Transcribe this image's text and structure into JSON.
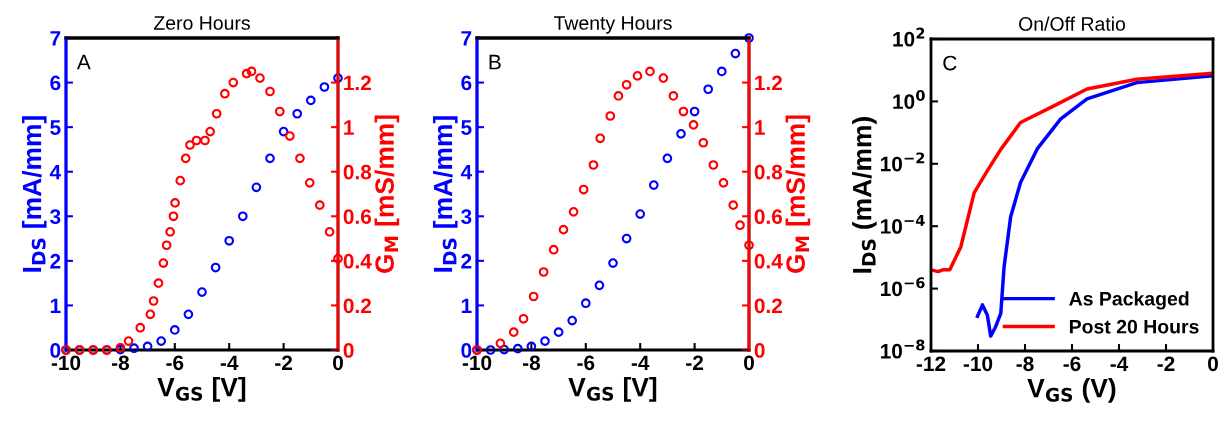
{
  "chart_data": [
    {
      "type": "scatter",
      "title": "Zero Hours",
      "xlabel": "V$_{GS}$ [V]",
      "ylabel": "I$_{DS}$ [mA/mm]",
      "y2label": "G$_{M}$ [mS/mm]",
      "annotations": [
        "A"
      ],
      "marker": "circle",
      "grid": false,
      "legend": false,
      "xlim": [
        -10,
        0
      ],
      "xticks": [
        -10,
        -8,
        -6,
        -4,
        -2,
        0
      ],
      "ylim": [
        0,
        7
      ],
      "yticks": [
        0,
        1,
        2,
        3,
        4,
        5,
        6,
        7
      ],
      "y2lim": [
        0,
        1.4
      ],
      "y2ticks": [
        0,
        0.2,
        0.4,
        0.6,
        0.8,
        1,
        1.2
      ],
      "series": [
        {
          "color": "#0000ff",
          "x": [
            -10,
            -9.5,
            -9,
            -8.5,
            -8,
            -7.5,
            -7,
            -6.5,
            -6,
            -5.5,
            -5,
            -4.5,
            -4,
            -3.5,
            -3,
            -2.5,
            -2,
            -1.5,
            -1,
            -0.5,
            0
          ],
          "values": [
            0,
            0,
            0,
            0,
            0.01,
            0.04,
            0.08,
            0.2,
            0.45,
            0.8,
            1.3,
            1.85,
            2.45,
            3.0,
            3.65,
            4.3,
            4.9,
            5.3,
            5.6,
            5.9,
            6.1
          ]
        },
        {
          "color": "#ff0000",
          "axis": "y2",
          "x": [
            -10,
            -9.5,
            -9,
            -8.5,
            -8,
            -7.7,
            -7.27,
            -6.9,
            -6.78,
            -6.6,
            -6.42,
            -6.3,
            -6.17,
            -6.05,
            -5.99,
            -5.8,
            -5.6,
            -5.44,
            -5.2,
            -4.89,
            -4.7,
            -4.46,
            -4.16,
            -3.85,
            -3.36,
            -3.18,
            -2.87,
            -2.5,
            -2.14,
            -1.77,
            -1.4,
            -1.04,
            -0.67,
            -0.31,
            0
          ],
          "values": [
            0,
            0,
            0,
            0,
            0.01,
            0.04,
            0.1,
            0.16,
            0.22,
            0.3,
            0.39,
            0.47,
            0.53,
            0.6,
            0.66,
            0.76,
            0.86,
            0.92,
            0.94,
            0.94,
            0.98,
            1.06,
            1.15,
            1.2,
            1.24,
            1.25,
            1.22,
            1.16,
            1.07,
            0.96,
            0.86,
            0.75,
            0.65,
            0.53,
            0.41
          ]
        }
      ]
    },
    {
      "type": "scatter",
      "title": "Twenty Hours",
      "xlabel": "V$_{GS}$ [V]",
      "ylabel": "I$_{DS}$ [mA/mm]",
      "y2label": "G$_{M}$ [mS/mm]",
      "annotations": [
        "B"
      ],
      "marker": "circle",
      "grid": false,
      "legend": false,
      "xlim": [
        -10,
        0
      ],
      "xticks": [
        -10,
        -8,
        -6,
        -4,
        -2,
        0
      ],
      "ylim": [
        0,
        7
      ],
      "yticks": [
        0,
        1,
        2,
        3,
        4,
        5,
        6,
        7
      ],
      "y2lim": [
        0,
        1.4
      ],
      "y2ticks": [
        0,
        0.2,
        0.4,
        0.6,
        0.8,
        1,
        1.2
      ],
      "series": [
        {
          "color": "#0000ff",
          "x": [
            -10,
            -9.5,
            -9,
            -8.5,
            -8,
            -7.5,
            -7,
            -6.5,
            -6,
            -5.5,
            -5,
            -4.5,
            -4,
            -3.5,
            -3,
            -2.5,
            -2,
            -1.5,
            -1,
            -0.5,
            0
          ],
          "values": [
            0,
            0,
            0.01,
            0.03,
            0.08,
            0.2,
            0.4,
            0.66,
            1.05,
            1.45,
            1.95,
            2.5,
            3.05,
            3.7,
            4.3,
            4.85,
            5.35,
            5.85,
            6.25,
            6.65,
            7.0
          ]
        },
        {
          "color": "#ff0000",
          "axis": "y2",
          "x": [
            -10,
            -9.14,
            -8.65,
            -8.29,
            -7.92,
            -7.55,
            -7.18,
            -6.82,
            -6.45,
            -6.08,
            -5.72,
            -5.47,
            -5.1,
            -4.8,
            -4.5,
            -4.1,
            -3.64,
            -3.15,
            -2.78,
            -2.41,
            -2.04,
            -1.68,
            -1.31,
            -0.94,
            -0.58,
            -0.33,
            0
          ],
          "values": [
            0,
            0.03,
            0.08,
            0.14,
            0.24,
            0.35,
            0.45,
            0.54,
            0.62,
            0.72,
            0.83,
            0.95,
            1.05,
            1.14,
            1.19,
            1.23,
            1.25,
            1.22,
            1.14,
            1.07,
            1.01,
            0.93,
            0.83,
            0.75,
            0.65,
            0.56,
            0.47
          ]
        }
      ]
    },
    {
      "type": "line",
      "title": "On/Off Ratio",
      "xlabel": "V$_{GS}$ (V)",
      "ylabel": "I$_{DS}$ (mA/mm)",
      "annotations": [
        "C"
      ],
      "log": "y",
      "grid": false,
      "legend": "bottom right",
      "marker": "none",
      "line_style": "solid",
      "xlim": [
        -12,
        0
      ],
      "xticks": [
        -12,
        -10,
        -8,
        -6,
        -4,
        -2,
        0
      ],
      "ylim": [
        1e-08,
        100
      ],
      "yticks": [
        {
          "value": 1e-08,
          "label": "10$^{−8}$"
        },
        {
          "value": 1e-06,
          "label": "10$^{−6}$"
        },
        {
          "value": 0.0001,
          "label": "10$^{−4}$"
        },
        {
          "value": 0.01,
          "label": "10$^{−2}$"
        },
        {
          "value": 1,
          "label": "10$^{0}$"
        },
        {
          "value": 100,
          "label": "10$^{2}$"
        }
      ],
      "series": [
        {
          "name": "As Packaged",
          "color": "#0000ff",
          "x": [
            -10.02,
            -9.81,
            -9.6,
            -9.46,
            -9.25,
            -9.03,
            -8.89,
            -8.61,
            -8.19,
            -7.48,
            -6.49,
            -5.36,
            -3.24,
            0
          ],
          "values": [
            1.3e-07,
            3e-07,
            1.4e-07,
            3e-08,
            6e-08,
            1.6e-07,
            5e-06,
            0.0002,
            0.0025,
            0.03,
            0.27,
            1.2,
            4,
            6.6
          ]
        },
        {
          "name": "Post 20 Hours",
          "color": "#ff0000",
          "x": [
            -12,
            -11.7,
            -11.5,
            -11.2,
            -10.73,
            -10.16,
            -9.6,
            -9.03,
            -8.19,
            -6.77,
            -5.36,
            -3.24,
            0
          ],
          "values": [
            4e-06,
            3.5e-06,
            4e-06,
            4e-06,
            2.2e-05,
            0.0012,
            0.006,
            0.029,
            0.21,
            0.72,
            2.5,
            5.1,
            8
          ]
        }
      ]
    }
  ]
}
